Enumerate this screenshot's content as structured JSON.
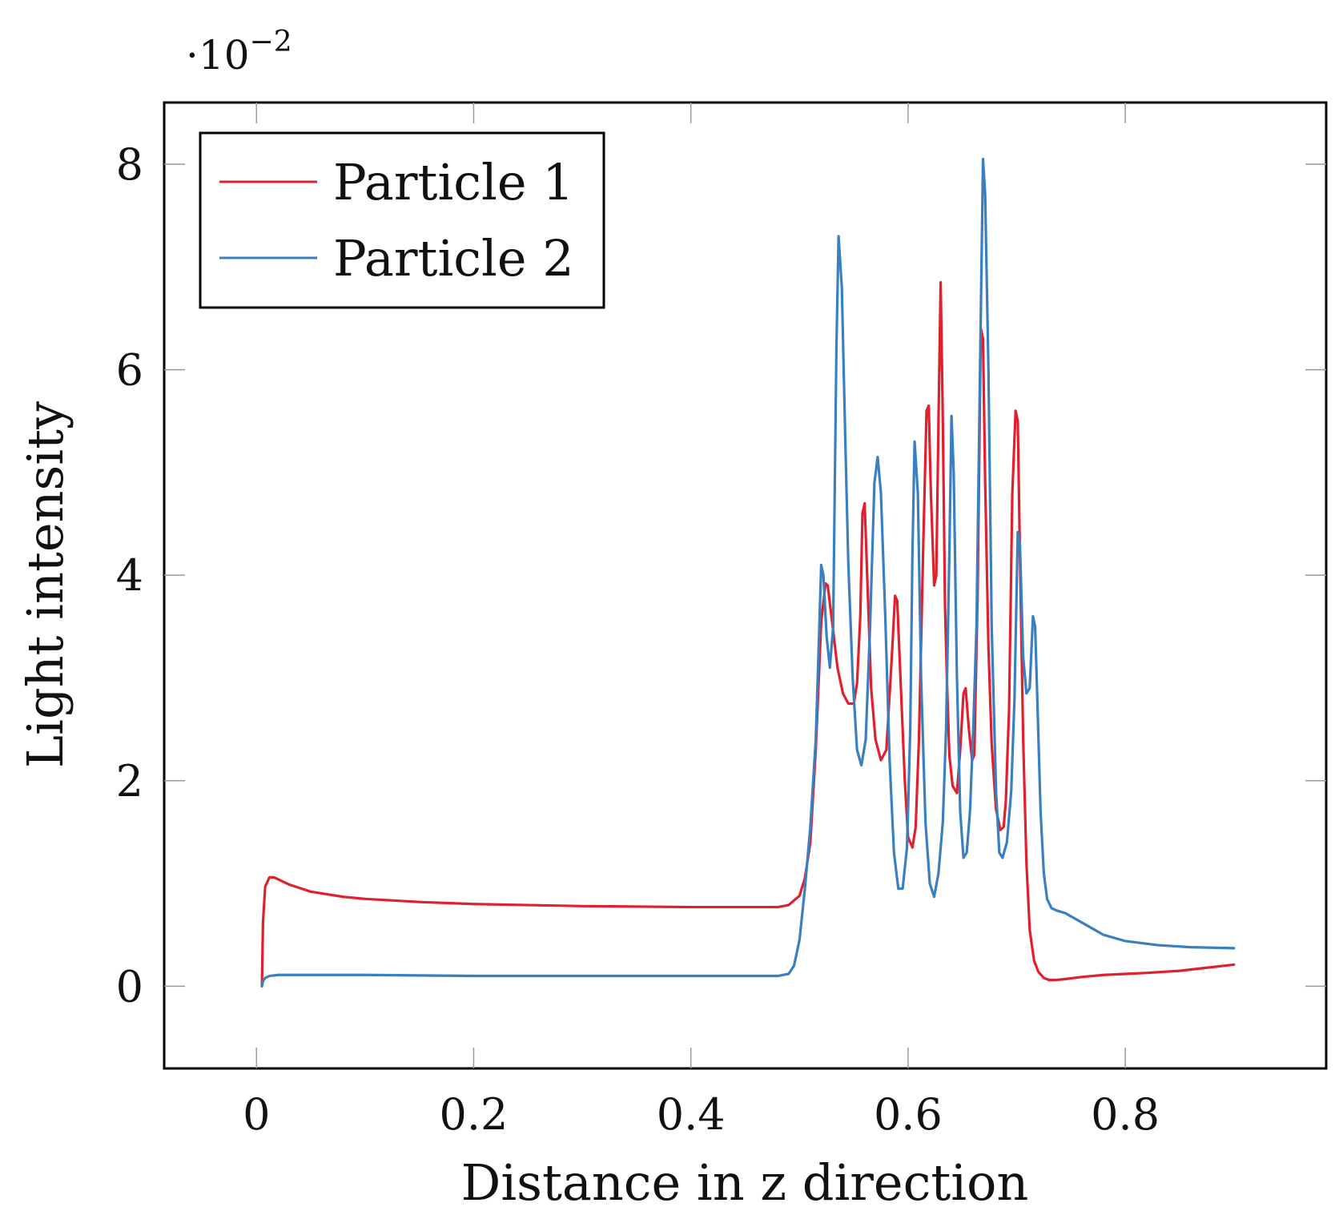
{
  "chart_data": {
    "type": "line",
    "title": "",
    "xlabel": "Distance in z direction",
    "ylabel": "Light intensity",
    "y_scale_label": "·10",
    "y_scale_exponent": "−2",
    "xlim": [
      -0.085,
      0.985
    ],
    "ylim": [
      -0.8,
      8.6
    ],
    "xticks": [
      0,
      0.2,
      0.4,
      0.6,
      0.8
    ],
    "xtick_labels": [
      "0",
      "0.2",
      "0.4",
      "0.6",
      "0.8"
    ],
    "yticks": [
      0,
      2,
      4,
      6,
      8
    ],
    "ytick_labels": [
      "0",
      "2",
      "4",
      "6",
      "8"
    ],
    "grid": false,
    "legend_position": "top-left",
    "series": [
      {
        "name": "Particle 1",
        "color": "#e0202e",
        "x": [
          0.005,
          0.006,
          0.008,
          0.012,
          0.016,
          0.02,
          0.03,
          0.05,
          0.08,
          0.1,
          0.15,
          0.2,
          0.3,
          0.4,
          0.45,
          0.48,
          0.49,
          0.5,
          0.505,
          0.51,
          0.515,
          0.52,
          0.524,
          0.526,
          0.53,
          0.535,
          0.54,
          0.545,
          0.55,
          0.553,
          0.556,
          0.558,
          0.56,
          0.563,
          0.566,
          0.57,
          0.575,
          0.58,
          0.585,
          0.588,
          0.59,
          0.593,
          0.597,
          0.6,
          0.604,
          0.607,
          0.61,
          0.614,
          0.617,
          0.619,
          0.621,
          0.624,
          0.626,
          0.628,
          0.63,
          0.632,
          0.634,
          0.636,
          0.638,
          0.641,
          0.645,
          0.648,
          0.651,
          0.653,
          0.656,
          0.659,
          0.661,
          0.664,
          0.667,
          0.669,
          0.671,
          0.674,
          0.677,
          0.681,
          0.685,
          0.688,
          0.69,
          0.693,
          0.696,
          0.699,
          0.701,
          0.703,
          0.706,
          0.709,
          0.712,
          0.716,
          0.72,
          0.725,
          0.73,
          0.735,
          0.745,
          0.76,
          0.78,
          0.8,
          0.82,
          0.85,
          0.875,
          0.9
        ],
        "values": [
          0.0,
          0.62,
          0.97,
          1.06,
          1.06,
          1.04,
          0.99,
          0.92,
          0.87,
          0.85,
          0.82,
          0.8,
          0.78,
          0.77,
          0.77,
          0.77,
          0.79,
          0.88,
          1.05,
          1.4,
          2.3,
          3.55,
          3.92,
          3.9,
          3.55,
          3.1,
          2.85,
          2.75,
          2.75,
          2.95,
          3.6,
          4.6,
          4.7,
          3.8,
          2.9,
          2.4,
          2.2,
          2.3,
          3.2,
          3.8,
          3.75,
          3.0,
          2.0,
          1.45,
          1.35,
          1.55,
          2.4,
          4.3,
          5.6,
          5.65,
          4.8,
          3.9,
          4.0,
          5.5,
          6.85,
          5.5,
          3.7,
          2.9,
          2.25,
          1.95,
          1.88,
          2.3,
          2.85,
          2.9,
          2.5,
          2.2,
          2.25,
          3.8,
          6.4,
          6.3,
          4.9,
          3.3,
          2.35,
          1.72,
          1.52,
          1.55,
          1.8,
          2.7,
          4.8,
          5.6,
          5.5,
          4.2,
          2.4,
          1.2,
          0.55,
          0.25,
          0.14,
          0.08,
          0.06,
          0.06,
          0.07,
          0.09,
          0.11,
          0.12,
          0.13,
          0.15,
          0.18,
          0.21
        ]
      },
      {
        "name": "Particle 2",
        "color": "#3a7fbf",
        "x": [
          0.005,
          0.006,
          0.008,
          0.012,
          0.02,
          0.03,
          0.05,
          0.1,
          0.2,
          0.3,
          0.4,
          0.45,
          0.48,
          0.49,
          0.495,
          0.5,
          0.505,
          0.51,
          0.515,
          0.518,
          0.52,
          0.522,
          0.525,
          0.528,
          0.531,
          0.534,
          0.536,
          0.539,
          0.542,
          0.545,
          0.549,
          0.553,
          0.557,
          0.561,
          0.565,
          0.569,
          0.572,
          0.575,
          0.579,
          0.583,
          0.587,
          0.591,
          0.595,
          0.599,
          0.602,
          0.604,
          0.606,
          0.609,
          0.612,
          0.616,
          0.62,
          0.624,
          0.628,
          0.632,
          0.635,
          0.638,
          0.64,
          0.642,
          0.645,
          0.648,
          0.651,
          0.654,
          0.657,
          0.66,
          0.663,
          0.666,
          0.669,
          0.671,
          0.674,
          0.677,
          0.681,
          0.684,
          0.687,
          0.691,
          0.695,
          0.698,
          0.701,
          0.703,
          0.706,
          0.709,
          0.712,
          0.715,
          0.717,
          0.719,
          0.722,
          0.725,
          0.728,
          0.732,
          0.736,
          0.745,
          0.76,
          0.78,
          0.8,
          0.83,
          0.86,
          0.9
        ],
        "values": [
          0.0,
          0.05,
          0.08,
          0.1,
          0.11,
          0.11,
          0.11,
          0.11,
          0.1,
          0.1,
          0.1,
          0.1,
          0.1,
          0.12,
          0.2,
          0.45,
          0.95,
          1.55,
          2.4,
          3.4,
          4.1,
          4.0,
          3.4,
          3.1,
          3.5,
          6.2,
          7.3,
          6.8,
          5.4,
          4.1,
          3.0,
          2.3,
          2.15,
          2.4,
          3.5,
          4.9,
          5.15,
          4.8,
          3.6,
          2.2,
          1.3,
          0.95,
          0.95,
          1.35,
          2.5,
          4.2,
          5.3,
          4.8,
          3.0,
          1.6,
          1.0,
          0.87,
          1.1,
          1.6,
          2.5,
          4.2,
          5.55,
          5.0,
          3.0,
          1.7,
          1.25,
          1.3,
          1.7,
          2.5,
          3.5,
          5.8,
          8.05,
          7.7,
          6.0,
          3.5,
          1.9,
          1.3,
          1.25,
          1.4,
          1.9,
          2.8,
          4.42,
          4.3,
          3.2,
          2.85,
          2.9,
          3.6,
          3.5,
          2.8,
          1.7,
          1.1,
          0.85,
          0.76,
          0.74,
          0.71,
          0.62,
          0.5,
          0.44,
          0.4,
          0.38,
          0.37
        ]
      }
    ]
  }
}
